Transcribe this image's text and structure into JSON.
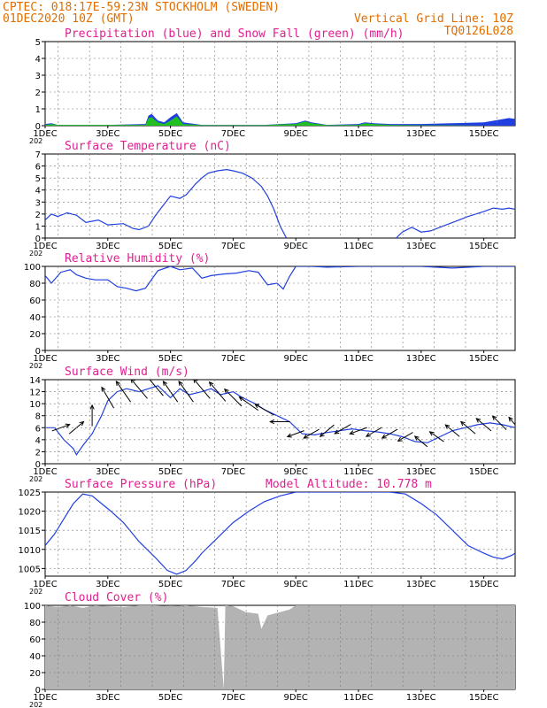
{
  "header": {
    "line1": "CPTEC:   018:17E-59:23N   STOCKHOLM (SWEDEN)",
    "line2_left": "01DEC2020 10Z (GMT)",
    "line2_right": "Vertical Grid Line: 10Z",
    "line3_right": "TQ0126L028",
    "cut_label": "202"
  },
  "colors": {
    "header": "#e06e00",
    "title": "#e0208f",
    "line": "#1f3fe0",
    "snow": "#1fc01f",
    "cloud": "#b3b3b3",
    "grid": "#777777"
  },
  "x_axis": {
    "labels": [
      "1DEC",
      "3DEC",
      "5DEC",
      "7DEC",
      "9DEC",
      "11DEC",
      "13DEC",
      "15DEC"
    ],
    "range_days": [
      0,
      15
    ]
  },
  "chart_data": [
    {
      "type": "area",
      "title": "Precipitation (blue) and Snow Fall (green) (mm/h)",
      "ylim": [
        0,
        5
      ],
      "yticks": [
        0,
        1,
        2,
        3,
        4,
        5
      ],
      "series": [
        {
          "x": [
            0,
            0.2,
            0.4,
            2.0,
            3.2,
            3.3,
            3.4,
            3.6,
            3.8,
            4.0,
            4.2,
            4.4,
            5.0,
            7.0,
            7.5,
            8.0,
            8.3,
            8.5,
            9.0,
            10.0,
            10.2,
            10.5,
            11.0,
            12.0,
            13.0,
            14.0,
            14.5,
            14.8,
            15.0
          ],
          "y": [
            0.1,
            0.15,
            0.05,
            0.05,
            0.1,
            0.6,
            0.7,
            0.3,
            0.2,
            0.5,
            0.75,
            0.2,
            0.05,
            0.05,
            0.1,
            0.15,
            0.3,
            0.2,
            0.05,
            0.1,
            0.2,
            0.15,
            0.1,
            0.1,
            0.15,
            0.2,
            0.35,
            0.45,
            0.4
          ]
        },
        {
          "x": [
            0,
            0.2,
            0.4,
            2.0,
            3.2,
            3.3,
            3.4,
            3.6,
            3.8,
            4.0,
            4.2,
            4.4,
            5.0,
            7.0,
            7.5,
            8.0,
            8.3,
            8.5,
            9.0,
            10.0,
            10.2,
            10.5,
            11.0,
            12.0,
            13.0,
            14.0,
            14.5,
            14.8,
            15.0
          ],
          "y": [
            0.05,
            0.1,
            0.05,
            0.05,
            0.05,
            0.45,
            0.5,
            0.2,
            0.1,
            0.3,
            0.55,
            0.1,
            0.03,
            0.03,
            0.08,
            0.1,
            0.25,
            0.15,
            0.03,
            0.05,
            0.15,
            0.1,
            0.05,
            0.02,
            0.02,
            0.0,
            0.0,
            0.0,
            0.0
          ]
        }
      ]
    },
    {
      "type": "line",
      "title": "Surface Temperature (nC)",
      "ylim": [
        0,
        7
      ],
      "yticks": [
        0,
        1,
        2,
        3,
        4,
        5,
        6,
        7
      ],
      "x": [
        0,
        0.2,
        0.4,
        0.7,
        1.0,
        1.3,
        1.7,
        2.0,
        2.5,
        2.8,
        3.0,
        3.3,
        3.5,
        3.7,
        4.0,
        4.3,
        4.5,
        4.8,
        5.0,
        5.2,
        5.5,
        5.8,
        6.0,
        6.3,
        6.6,
        6.9,
        7.1,
        7.3,
        7.5,
        7.7
      ],
      "y": [
        1.5,
        2.0,
        1.8,
        2.1,
        1.9,
        1.3,
        1.5,
        1.1,
        1.2,
        0.8,
        0.7,
        1.0,
        1.8,
        2.5,
        3.5,
        3.3,
        3.6,
        4.5,
        5.0,
        5.4,
        5.6,
        5.7,
        5.6,
        5.4,
        5.0,
        4.3,
        3.5,
        2.4,
        1.0,
        0.0
      ],
      "x2": [
        11.2,
        11.4,
        11.7,
        12.0,
        12.3,
        12.7,
        13.0,
        13.5,
        14.0,
        14.3,
        14.6,
        14.8,
        15.0
      ],
      "y2": [
        0.0,
        0.5,
        0.9,
        0.5,
        0.6,
        1.0,
        1.3,
        1.8,
        2.2,
        2.5,
        2.4,
        2.5,
        2.4
      ]
    },
    {
      "type": "line",
      "title": "Relative Humidity (%)",
      "ylim": [
        0,
        100
      ],
      "yticks": [
        0,
        20,
        40,
        60,
        80,
        100
      ],
      "x": [
        0,
        0.2,
        0.5,
        0.8,
        1.0,
        1.3,
        1.6,
        2.0,
        2.3,
        2.6,
        2.9,
        3.2,
        3.6,
        4.0,
        4.3,
        4.7,
        5.0,
        5.3,
        5.7,
        6.1,
        6.5,
        6.8,
        7.1,
        7.4,
        7.6,
        7.8,
        8.0,
        8.5,
        9.0,
        10.0,
        11.0,
        12.0,
        13.0,
        14.0,
        15.0
      ],
      "y": [
        89,
        80,
        93,
        96,
        90,
        86,
        84,
        84,
        76,
        74,
        71,
        74,
        95,
        100,
        96,
        98,
        86,
        89,
        91,
        92,
        95,
        93,
        78,
        80,
        73,
        88,
        100,
        100,
        99,
        100,
        100,
        100,
        98,
        100,
        100
      ]
    },
    {
      "type": "line",
      "title": "Surface Wind (m/s)",
      "ylim": [
        0,
        14
      ],
      "yticks": [
        0,
        2,
        4,
        6,
        8,
        10,
        12,
        14
      ],
      "x": [
        0,
        0.3,
        0.6,
        0.9,
        1.0,
        1.2,
        1.5,
        1.8,
        2.0,
        2.3,
        2.6,
        3.0,
        3.3,
        3.6,
        4.0,
        4.3,
        4.6,
        5.0,
        5.3,
        5.6,
        6.0,
        6.3,
        6.7,
        7.0,
        7.4,
        7.8,
        8.2,
        8.6,
        9.0,
        9.4,
        9.8,
        10.2,
        10.6,
        11.0,
        11.4,
        11.8,
        12.2,
        12.6,
        13.0,
        13.4,
        13.8,
        14.2,
        14.6,
        15.0
      ],
      "y": [
        6,
        6,
        4,
        2.5,
        1.5,
        3,
        5,
        8,
        10.5,
        12,
        12.5,
        12,
        12.5,
        13,
        11,
        12.5,
        11.5,
        12,
        12.5,
        11.5,
        12,
        11,
        10,
        9,
        8,
        7,
        5,
        4.8,
        5.2,
        5.5,
        5.8,
        5.5,
        5.3,
        5,
        4.5,
        3.7,
        3.5,
        4.5,
        5.5,
        6,
        6.5,
        6.8,
        6.5,
        6
      ],
      "wind_vectors": {
        "x": [
          0.5,
          1.0,
          1.5,
          2.0,
          2.5,
          3.0,
          3.5,
          4.0,
          4.5,
          5.0,
          5.5,
          6.0,
          6.5,
          7.0,
          7.5,
          8.0,
          8.5,
          9.0,
          9.5,
          10.0,
          10.5,
          11.0,
          11.5,
          12.0,
          12.5,
          13.0,
          13.5,
          14.0,
          14.5,
          15.0
        ],
        "speed": [
          6,
          6,
          8,
          11,
          12,
          12.5,
          13,
          12,
          12,
          12.5,
          12,
          11,
          10,
          9,
          7,
          5,
          5,
          5.5,
          5.8,
          5.5,
          5.3,
          5.0,
          4.5,
          3.7,
          4.5,
          5.5,
          6,
          6.5,
          6.8,
          6.5
        ],
        "dir_from_deg": [
          250,
          230,
          180,
          150,
          145,
          140,
          140,
          145,
          145,
          140,
          140,
          135,
          125,
          120,
          90,
          70,
          60,
          50,
          60,
          70,
          60,
          60,
          60,
          130,
          125,
          130,
          130,
          130,
          135,
          140
        ]
      }
    },
    {
      "type": "line",
      "title": "Surface Pressure (hPa)",
      "annotation": "Model Altitude: 10.778 m",
      "ylim": [
        1003,
        1025
      ],
      "yticks": [
        1005,
        1010,
        1015,
        1020,
        1025
      ],
      "x": [
        0,
        0.3,
        0.6,
        0.9,
        1.2,
        1.5,
        1.8,
        2.1,
        2.5,
        3.0,
        3.5,
        3.9,
        4.2,
        4.5,
        4.8,
        5.0,
        5.5,
        6.0,
        6.5,
        7.0,
        7.5,
        8.0,
        8.5,
        9.0,
        9.5,
        10.0,
        10.5,
        11.0,
        11.5,
        12.0,
        12.5,
        13.0,
        13.5,
        14.0,
        14.3,
        14.6,
        14.9,
        15.0
      ],
      "y": [
        1011,
        1014,
        1018,
        1022,
        1024.5,
        1024,
        1022,
        1020,
        1017,
        1012,
        1008,
        1004.5,
        1003.5,
        1004.5,
        1007,
        1009,
        1013,
        1017,
        1020,
        1022.5,
        1024,
        1025,
        1025,
        1025,
        1025,
        1025,
        1025,
        1025,
        1024.5,
        1022,
        1019,
        1015,
        1011,
        1009,
        1008,
        1007.5,
        1008.5,
        1009
      ]
    },
    {
      "type": "area",
      "title": "Cloud Cover (%)",
      "ylim": [
        0,
        100
      ],
      "yticks": [
        0,
        20,
        40,
        60,
        80,
        100
      ],
      "x": [
        0,
        0.4,
        0.8,
        1.2,
        1.6,
        2.0,
        2.5,
        3.0,
        3.5,
        4.0,
        4.5,
        5.0,
        5.5,
        5.7,
        5.75,
        5.8,
        6.0,
        6.4,
        6.8,
        6.9,
        7.1,
        7.3,
        7.5,
        7.8,
        8.0,
        8.5,
        9.0,
        10.0,
        11.0,
        12.0,
        13.0,
        14.0,
        15.0
      ],
      "y": [
        100,
        98,
        100,
        97,
        100,
        99,
        98,
        100,
        100,
        99,
        100,
        98,
        97,
        0,
        100,
        100,
        99,
        92,
        90,
        72,
        88,
        90,
        92,
        95,
        100,
        100,
        100,
        100,
        100,
        100,
        100,
        100,
        100
      ]
    }
  ]
}
